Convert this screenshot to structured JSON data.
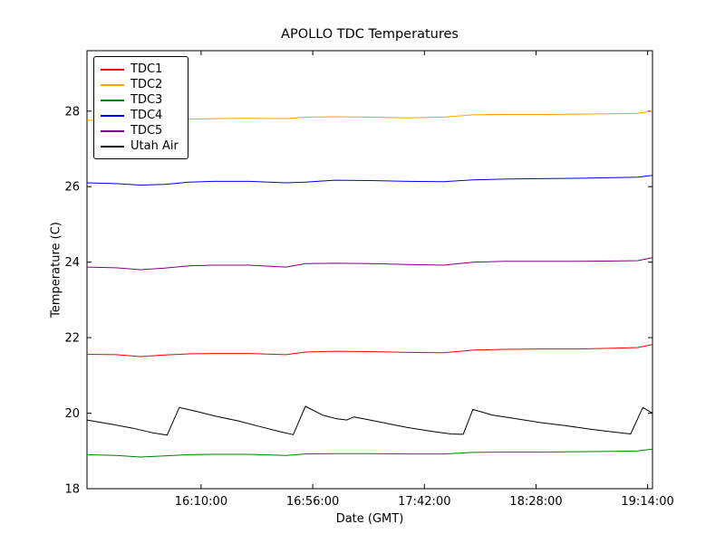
{
  "chart_data": {
    "type": "line",
    "title": "APOLLO TDC Temperatures",
    "xlabel": "Date (GMT)",
    "ylabel": "Temperature (C)",
    "grid": false,
    "legend_position": "upper-left",
    "x_encoding": "minutes relative to 16:10:00",
    "xlim": [
      -47,
      186
    ],
    "ylim": [
      18,
      29.6
    ],
    "xticks": [
      {
        "value": 0,
        "label": "16:10:00"
      },
      {
        "value": 46,
        "label": "16:56:00"
      },
      {
        "value": 92,
        "label": "17:42:00"
      },
      {
        "value": 138,
        "label": "18:28:00"
      },
      {
        "value": 184,
        "label": "19:14:00"
      }
    ],
    "yticks": [
      {
        "value": 18,
        "label": "18"
      },
      {
        "value": 20,
        "label": "20"
      },
      {
        "value": 22,
        "label": "22"
      },
      {
        "value": 24,
        "label": "24"
      },
      {
        "value": 26,
        "label": "26"
      },
      {
        "value": 28,
        "label": "28"
      }
    ],
    "series": [
      {
        "name": "TDC1",
        "color": "#ff0000",
        "x": [
          -47,
          -35,
          -25,
          -15,
          -5,
          5,
          20,
          35,
          43,
          55,
          70,
          85,
          100,
          112,
          125,
          140,
          155,
          170,
          180,
          186
        ],
        "y": [
          21.56,
          21.55,
          21.5,
          21.54,
          21.57,
          21.58,
          21.58,
          21.55,
          21.62,
          21.64,
          21.63,
          21.61,
          21.6,
          21.67,
          21.69,
          21.7,
          21.7,
          21.72,
          21.74,
          21.82
        ]
      },
      {
        "name": "TDC2",
        "color": "#ffa500",
        "x": [
          -47,
          -35,
          -25,
          -15,
          -5,
          5,
          20,
          35,
          43,
          55,
          70,
          85,
          100,
          112,
          125,
          140,
          155,
          170,
          180,
          186
        ],
        "y": [
          27.76,
          27.74,
          27.72,
          27.76,
          27.79,
          27.8,
          27.81,
          27.8,
          27.84,
          27.85,
          27.84,
          27.82,
          27.84,
          27.9,
          27.91,
          27.91,
          27.92,
          27.93,
          27.94,
          28.0
        ]
      },
      {
        "name": "TDC3",
        "color": "#008000",
        "x": [
          -47,
          -35,
          -25,
          -15,
          -5,
          5,
          20,
          35,
          43,
          55,
          70,
          85,
          100,
          112,
          125,
          140,
          155,
          170,
          180,
          186
        ],
        "y": [
          18.9,
          18.88,
          18.84,
          18.87,
          18.9,
          18.91,
          18.91,
          18.88,
          18.92,
          18.93,
          18.93,
          18.92,
          18.92,
          18.96,
          18.97,
          18.97,
          18.98,
          18.99,
          19.0,
          19.05
        ]
      },
      {
        "name": "TDC4",
        "color": "#0000ff",
        "x": [
          -47,
          -35,
          -25,
          -15,
          -5,
          5,
          20,
          35,
          43,
          55,
          70,
          85,
          100,
          112,
          125,
          140,
          155,
          170,
          180,
          186
        ],
        "y": [
          26.1,
          26.08,
          26.04,
          26.06,
          26.12,
          26.14,
          26.14,
          26.1,
          26.12,
          26.17,
          26.16,
          26.14,
          26.13,
          26.18,
          26.2,
          26.21,
          26.22,
          26.24,
          26.25,
          26.3
        ]
      },
      {
        "name": "TDC5",
        "color": "#800080",
        "x": [
          -47,
          -35,
          -25,
          -15,
          -5,
          5,
          20,
          35,
          43,
          55,
          70,
          85,
          100,
          112,
          125,
          140,
          155,
          170,
          180,
          186
        ],
        "y": [
          23.87,
          23.85,
          23.8,
          23.84,
          23.9,
          23.92,
          23.92,
          23.87,
          23.96,
          23.97,
          23.96,
          23.94,
          23.92,
          24.0,
          24.02,
          24.02,
          24.02,
          24.03,
          24.04,
          24.12
        ]
      },
      {
        "name": "Utah Air",
        "color": "#000000",
        "x": [
          -47,
          -38,
          -28,
          -20,
          -14,
          -9,
          -2,
          6,
          15,
          24,
          32,
          38,
          43,
          50,
          56,
          60,
          63,
          67,
          75,
          85,
          95,
          103,
          108,
          112,
          120,
          130,
          140,
          150,
          160,
          170,
          177,
          182,
          186
        ],
        "y": [
          19.82,
          19.72,
          19.6,
          19.48,
          19.42,
          20.15,
          20.05,
          19.92,
          19.8,
          19.65,
          19.52,
          19.43,
          20.18,
          19.95,
          19.85,
          19.82,
          19.9,
          19.85,
          19.75,
          19.62,
          19.52,
          19.45,
          19.44,
          20.1,
          19.95,
          19.85,
          19.75,
          19.67,
          19.58,
          19.5,
          19.45,
          20.15,
          20.0
        ]
      }
    ]
  }
}
